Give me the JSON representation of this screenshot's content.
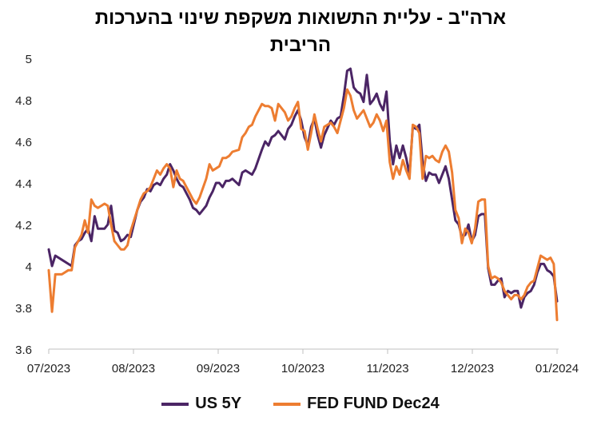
{
  "title_line1": "ארה\"ב - עליית התשואות משקפת שינוי בהערכות",
  "title_line2": "הריבית",
  "chart_data": {
    "type": "line",
    "title": "ארה\"ב - עליית התשואות משקפת שינוי בהערכות הריבית",
    "ylim": [
      3.6,
      5.0
    ],
    "yticks": [
      "3.6",
      "3.8",
      "4",
      "4.2",
      "4.4",
      "4.6",
      "4.8",
      "5"
    ],
    "xticks": [
      "07/2023",
      "08/2023",
      "09/2023",
      "10/2023",
      "11/2023",
      "12/2023",
      "01/2024"
    ],
    "grid": false,
    "legend_position": "bottom",
    "series": [
      {
        "name": "US 5Y",
        "color": "#4b2565",
        "points": [
          [
            0,
            4.08
          ],
          [
            1,
            4.0
          ],
          [
            2,
            4.05
          ],
          [
            4,
            4.03
          ],
          [
            6,
            4.01
          ],
          [
            7,
            4.0
          ],
          [
            8,
            4.1
          ],
          [
            9,
            4.12
          ],
          [
            10,
            4.13
          ],
          [
            11,
            4.16
          ],
          [
            12,
            4.18
          ],
          [
            13,
            4.12
          ],
          [
            14,
            4.24
          ],
          [
            15,
            4.18
          ],
          [
            16,
            4.18
          ],
          [
            17,
            4.18
          ],
          [
            18,
            4.2
          ],
          [
            19,
            4.29
          ],
          [
            20,
            4.17
          ],
          [
            21,
            4.16
          ],
          [
            22,
            4.12
          ],
          [
            23,
            4.13
          ],
          [
            24,
            4.15
          ],
          [
            25,
            4.14
          ],
          [
            27,
            4.27
          ],
          [
            28,
            4.31
          ],
          [
            29,
            4.33
          ],
          [
            30,
            4.37
          ],
          [
            31,
            4.36
          ],
          [
            32,
            4.39
          ],
          [
            33,
            4.4
          ],
          [
            34,
            4.39
          ],
          [
            35,
            4.42
          ],
          [
            36,
            4.44
          ],
          [
            37,
            4.49
          ],
          [
            38,
            4.46
          ],
          [
            39,
            4.42
          ],
          [
            40,
            4.39
          ],
          [
            41,
            4.38
          ],
          [
            43,
            4.32
          ],
          [
            44,
            4.28
          ],
          [
            45,
            4.27
          ],
          [
            46,
            4.25
          ],
          [
            48,
            4.29
          ],
          [
            49,
            4.33
          ],
          [
            50,
            4.36
          ],
          [
            51,
            4.4
          ],
          [
            52,
            4.4
          ],
          [
            53,
            4.38
          ],
          [
            54,
            4.41
          ],
          [
            55,
            4.41
          ],
          [
            56,
            4.42
          ],
          [
            58,
            4.39
          ],
          [
            59,
            4.45
          ],
          [
            60,
            4.46
          ],
          [
            61,
            4.45
          ],
          [
            62,
            4.44
          ],
          [
            63,
            4.47
          ],
          [
            65,
            4.56
          ],
          [
            66,
            4.6
          ],
          [
            67,
            4.58
          ],
          [
            68,
            4.62
          ],
          [
            69,
            4.63
          ],
          [
            70,
            4.65
          ],
          [
            72,
            4.61
          ],
          [
            73,
            4.66
          ],
          [
            74,
            4.68
          ],
          [
            75,
            4.72
          ],
          [
            76,
            4.75
          ],
          [
            77,
            4.7
          ],
          [
            78,
            4.62
          ],
          [
            79,
            4.58
          ],
          [
            80,
            4.67
          ],
          [
            81,
            4.71
          ],
          [
            82,
            4.63
          ],
          [
            83,
            4.57
          ],
          [
            84,
            4.63
          ],
          [
            86,
            4.7
          ],
          [
            87,
            4.68
          ],
          [
            88,
            4.71
          ],
          [
            89,
            4.72
          ],
          [
            90,
            4.82
          ],
          [
            91,
            4.94
          ],
          [
            92,
            4.95
          ],
          [
            93,
            4.86
          ],
          [
            94,
            4.84
          ],
          [
            95,
            4.83
          ],
          [
            96,
            4.79
          ],
          [
            97,
            4.92
          ],
          [
            98,
            4.78
          ],
          [
            99,
            4.8
          ],
          [
            100,
            4.83
          ],
          [
            101,
            4.78
          ],
          [
            102,
            4.75
          ],
          [
            103,
            4.84
          ],
          [
            104,
            4.6
          ],
          [
            105,
            4.49
          ],
          [
            106,
            4.58
          ],
          [
            107,
            4.52
          ],
          [
            108,
            4.58
          ],
          [
            109,
            4.52
          ],
          [
            110,
            4.44
          ],
          [
            111,
            4.67
          ],
          [
            112,
            4.66
          ],
          [
            113,
            4.68
          ],
          [
            114,
            4.5
          ],
          [
            115,
            4.41
          ],
          [
            116,
            4.45
          ],
          [
            117,
            4.44
          ],
          [
            118,
            4.44
          ],
          [
            119,
            4.4
          ],
          [
            120,
            4.44
          ],
          [
            121,
            4.48
          ],
          [
            122,
            4.42
          ],
          [
            123,
            4.32
          ],
          [
            124,
            4.22
          ],
          [
            125,
            4.2
          ],
          [
            126,
            4.14
          ],
          [
            127,
            4.15
          ],
          [
            128,
            4.2
          ],
          [
            129,
            4.12
          ],
          [
            130,
            4.15
          ],
          [
            131,
            4.24
          ],
          [
            132,
            4.25
          ],
          [
            133,
            4.25
          ],
          [
            134,
            3.99
          ],
          [
            135,
            3.91
          ],
          [
            136,
            3.91
          ],
          [
            137,
            3.93
          ],
          [
            138,
            3.94
          ],
          [
            139,
            3.85
          ],
          [
            140,
            3.88
          ],
          [
            141,
            3.87
          ],
          [
            142,
            3.88
          ],
          [
            143,
            3.88
          ],
          [
            144,
            3.8
          ],
          [
            145,
            3.85
          ],
          [
            146,
            3.87
          ],
          [
            147,
            3.88
          ],
          [
            148,
            3.91
          ],
          [
            149,
            3.97
          ],
          [
            150,
            4.01
          ],
          [
            151,
            4.01
          ],
          [
            152,
            3.98
          ],
          [
            153,
            3.97
          ],
          [
            154,
            3.95
          ],
          [
            155,
            3.83
          ]
        ]
      },
      {
        "name": "FED FUND  Dec24",
        "color": "#ed7d31",
        "points": [
          [
            0,
            3.98
          ],
          [
            1,
            3.78
          ],
          [
            2,
            3.96
          ],
          [
            4,
            3.96
          ],
          [
            6,
            3.98
          ],
          [
            7,
            3.98
          ],
          [
            8,
            4.09
          ],
          [
            9,
            4.12
          ],
          [
            10,
            4.15
          ],
          [
            11,
            4.22
          ],
          [
            12,
            4.16
          ],
          [
            13,
            4.32
          ],
          [
            14,
            4.29
          ],
          [
            15,
            4.28
          ],
          [
            16,
            4.29
          ],
          [
            17,
            4.3
          ],
          [
            18,
            4.29
          ],
          [
            19,
            4.2
          ],
          [
            20,
            4.12
          ],
          [
            21,
            4.1
          ],
          [
            22,
            4.08
          ],
          [
            23,
            4.08
          ],
          [
            24,
            4.1
          ],
          [
            25,
            4.17
          ],
          [
            27,
            4.27
          ],
          [
            28,
            4.32
          ],
          [
            29,
            4.35
          ],
          [
            30,
            4.36
          ],
          [
            31,
            4.38
          ],
          [
            32,
            4.42
          ],
          [
            33,
            4.46
          ],
          [
            34,
            4.44
          ],
          [
            35,
            4.47
          ],
          [
            36,
            4.49
          ],
          [
            37,
            4.47
          ],
          [
            38,
            4.38
          ],
          [
            39,
            4.46
          ],
          [
            40,
            4.42
          ],
          [
            41,
            4.41
          ],
          [
            43,
            4.35
          ],
          [
            44,
            4.32
          ],
          [
            45,
            4.3
          ],
          [
            46,
            4.33
          ],
          [
            48,
            4.42
          ],
          [
            49,
            4.49
          ],
          [
            50,
            4.46
          ],
          [
            51,
            4.47
          ],
          [
            52,
            4.48
          ],
          [
            53,
            4.52
          ],
          [
            54,
            4.52
          ],
          [
            55,
            4.53
          ],
          [
            56,
            4.55
          ],
          [
            58,
            4.56
          ],
          [
            59,
            4.62
          ],
          [
            60,
            4.64
          ],
          [
            61,
            4.67
          ],
          [
            62,
            4.68
          ],
          [
            63,
            4.72
          ],
          [
            65,
            4.78
          ],
          [
            66,
            4.77
          ],
          [
            67,
            4.77
          ],
          [
            68,
            4.76
          ],
          [
            69,
            4.7
          ],
          [
            70,
            4.78
          ],
          [
            72,
            4.74
          ],
          [
            73,
            4.7
          ],
          [
            74,
            4.72
          ],
          [
            75,
            4.76
          ],
          [
            76,
            4.79
          ],
          [
            77,
            4.66
          ],
          [
            78,
            4.65
          ],
          [
            79,
            4.56
          ],
          [
            80,
            4.64
          ],
          [
            81,
            4.73
          ],
          [
            82,
            4.66
          ],
          [
            83,
            4.6
          ],
          [
            84,
            4.67
          ],
          [
            86,
            4.69
          ],
          [
            87,
            4.67
          ],
          [
            88,
            4.64
          ],
          [
            89,
            4.7
          ],
          [
            90,
            4.76
          ],
          [
            91,
            4.85
          ],
          [
            92,
            4.82
          ],
          [
            93,
            4.75
          ],
          [
            94,
            4.71
          ],
          [
            95,
            4.73
          ],
          [
            96,
            4.75
          ],
          [
            97,
            4.71
          ],
          [
            98,
            4.67
          ],
          [
            99,
            4.69
          ],
          [
            100,
            4.73
          ],
          [
            101,
            4.7
          ],
          [
            102,
            4.65
          ],
          [
            103,
            4.7
          ],
          [
            104,
            4.5
          ],
          [
            105,
            4.42
          ],
          [
            106,
            4.48
          ],
          [
            107,
            4.44
          ],
          [
            108,
            4.51
          ],
          [
            109,
            4.46
          ],
          [
            110,
            4.42
          ],
          [
            111,
            4.68
          ],
          [
            112,
            4.67
          ],
          [
            113,
            4.64
          ],
          [
            114,
            4.42
          ],
          [
            115,
            4.53
          ],
          [
            116,
            4.52
          ],
          [
            117,
            4.53
          ],
          [
            118,
            4.51
          ],
          [
            119,
            4.5
          ],
          [
            120,
            4.55
          ],
          [
            121,
            4.58
          ],
          [
            122,
            4.55
          ],
          [
            123,
            4.45
          ],
          [
            124,
            4.27
          ],
          [
            125,
            4.23
          ],
          [
            126,
            4.11
          ],
          [
            127,
            4.18
          ],
          [
            128,
            4.16
          ],
          [
            129,
            4.11
          ],
          [
            130,
            4.18
          ],
          [
            131,
            4.31
          ],
          [
            132,
            4.32
          ],
          [
            133,
            4.32
          ],
          [
            134,
            4.0
          ],
          [
            135,
            3.94
          ],
          [
            136,
            3.95
          ],
          [
            137,
            3.94
          ],
          [
            138,
            3.92
          ],
          [
            139,
            3.88
          ],
          [
            140,
            3.86
          ],
          [
            141,
            3.84
          ],
          [
            142,
            3.86
          ],
          [
            143,
            3.86
          ],
          [
            144,
            3.84
          ],
          [
            145,
            3.86
          ],
          [
            146,
            3.9
          ],
          [
            147,
            3.92
          ],
          [
            148,
            3.93
          ],
          [
            149,
            3.99
          ],
          [
            150,
            4.05
          ],
          [
            151,
            4.04
          ],
          [
            152,
            4.03
          ],
          [
            153,
            4.04
          ],
          [
            154,
            4.01
          ],
          [
            155,
            3.74
          ]
        ]
      }
    ]
  },
  "legend": [
    {
      "label": "US 5Y",
      "color": "#4b2565"
    },
    {
      "label": "FED FUND  Dec24",
      "color": "#ed7d31"
    }
  ]
}
